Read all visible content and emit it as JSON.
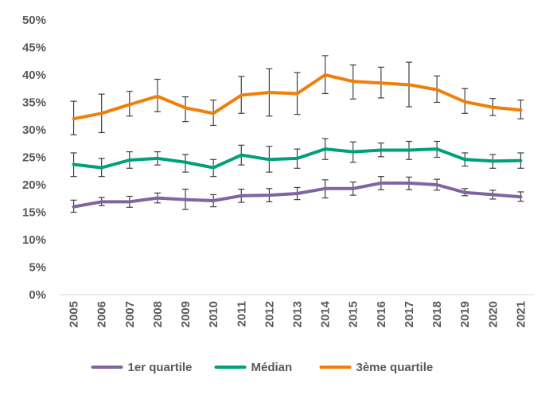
{
  "chart_data": {
    "type": "line",
    "title": "",
    "xlabel": "",
    "ylabel": "",
    "x": [
      "2005",
      "2006",
      "2007",
      "2008",
      "2009",
      "2010",
      "2011",
      "2012",
      "2013",
      "2014",
      "2015",
      "2016",
      "2017",
      "2018",
      "2019",
      "2020",
      "2021"
    ],
    "ylim": [
      0,
      50
    ],
    "y_ticks": [
      "0%",
      "5%",
      "10%",
      "15%",
      "20%",
      "25%",
      "30%",
      "35%",
      "40%",
      "45%",
      "50%"
    ],
    "grid": false,
    "legend_position": "bottom",
    "series": [
      {
        "name": "1er quartile",
        "color": "#8064A2",
        "values": [
          16.0,
          16.9,
          16.9,
          17.6,
          17.3,
          17.1,
          18.0,
          18.1,
          18.4,
          19.3,
          19.3,
          20.3,
          20.3,
          20.0,
          18.6,
          18.2,
          17.8
        ],
        "error_low": [
          15.0,
          16.2,
          15.9,
          16.7,
          15.5,
          16.0,
          16.8,
          16.9,
          17.3,
          17.6,
          18.1,
          19.1,
          19.1,
          19.0,
          18.0,
          17.4,
          17.0
        ],
        "error_high": [
          17.2,
          17.7,
          17.9,
          18.5,
          19.2,
          18.2,
          19.2,
          19.3,
          19.5,
          20.9,
          20.5,
          21.5,
          21.4,
          21.0,
          19.3,
          19.0,
          18.7
        ]
      },
      {
        "name": "Médian",
        "color": "#00A07A",
        "values": [
          23.7,
          23.1,
          24.5,
          24.8,
          24.1,
          23.1,
          25.4,
          24.6,
          24.8,
          26.5,
          26.0,
          26.3,
          26.3,
          26.5,
          24.6,
          24.3,
          24.4
        ],
        "error_low": [
          21.5,
          21.5,
          23.0,
          23.6,
          22.3,
          21.5,
          23.6,
          22.3,
          23.0,
          24.6,
          24.1,
          25.1,
          24.6,
          25.0,
          23.4,
          23.0,
          23.0
        ],
        "error_high": [
          25.8,
          24.8,
          26.0,
          26.0,
          25.5,
          24.6,
          27.2,
          27.0,
          26.5,
          28.4,
          27.8,
          27.6,
          27.9,
          27.9,
          25.8,
          25.5,
          25.8
        ]
      },
      {
        "name": "3ème quartile",
        "color": "#F07F09",
        "values": [
          32.0,
          33.0,
          34.6,
          36.1,
          34.0,
          33.0,
          36.3,
          36.8,
          36.6,
          40.0,
          38.8,
          38.5,
          38.2,
          37.3,
          35.1,
          34.1,
          33.6
        ],
        "error_low": [
          29.1,
          29.5,
          32.5,
          33.3,
          31.5,
          30.8,
          33.0,
          32.5,
          32.8,
          36.6,
          35.6,
          35.8,
          34.2,
          35.0,
          33.0,
          32.6,
          32.0
        ],
        "error_high": [
          35.2,
          36.5,
          37.0,
          39.2,
          36.0,
          35.4,
          39.7,
          41.1,
          40.4,
          43.5,
          41.8,
          41.4,
          42.3,
          39.8,
          37.5,
          35.7,
          35.4
        ]
      }
    ]
  }
}
